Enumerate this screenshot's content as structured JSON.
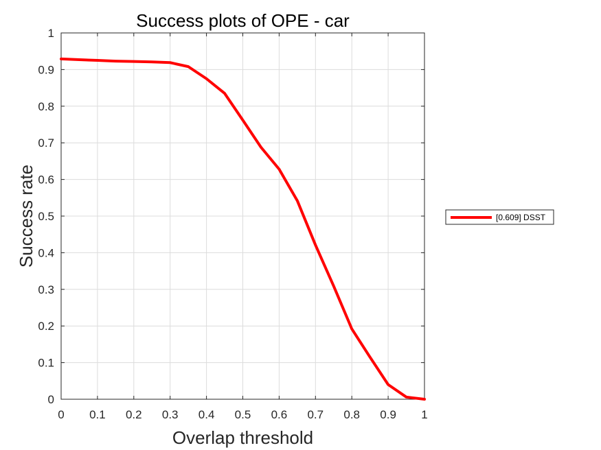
{
  "chart_data": {
    "type": "line",
    "title": "Success plots of OPE - car",
    "xlabel": "Overlap threshold",
    "ylabel": "Success rate",
    "xlim": [
      0,
      1
    ],
    "ylim": [
      0,
      1
    ],
    "x_ticks": [
      "0",
      "0.1",
      "0.2",
      "0.3",
      "0.4",
      "0.5",
      "0.6",
      "0.7",
      "0.8",
      "0.9",
      "1"
    ],
    "y_ticks": [
      "0",
      "0.1",
      "0.2",
      "0.3",
      "0.4",
      "0.5",
      "0.6",
      "0.7",
      "0.8",
      "0.9",
      "1"
    ],
    "grid": true,
    "legend_position": "outside-right",
    "series": [
      {
        "name": "[0.609] DSST",
        "color": "#ff0000",
        "x": [
          0,
          0.05,
          0.1,
          0.15,
          0.2,
          0.25,
          0.3,
          0.35,
          0.4,
          0.45,
          0.5,
          0.55,
          0.6,
          0.65,
          0.7,
          0.75,
          0.8,
          0.85,
          0.9,
          0.95,
          1.0
        ],
        "y": [
          0.929,
          0.927,
          0.925,
          0.923,
          0.922,
          0.921,
          0.919,
          0.908,
          0.875,
          0.835,
          0.762,
          0.688,
          0.628,
          0.542,
          0.421,
          0.309,
          0.192,
          0.115,
          0.04,
          0.006,
          0.0
        ]
      }
    ]
  }
}
